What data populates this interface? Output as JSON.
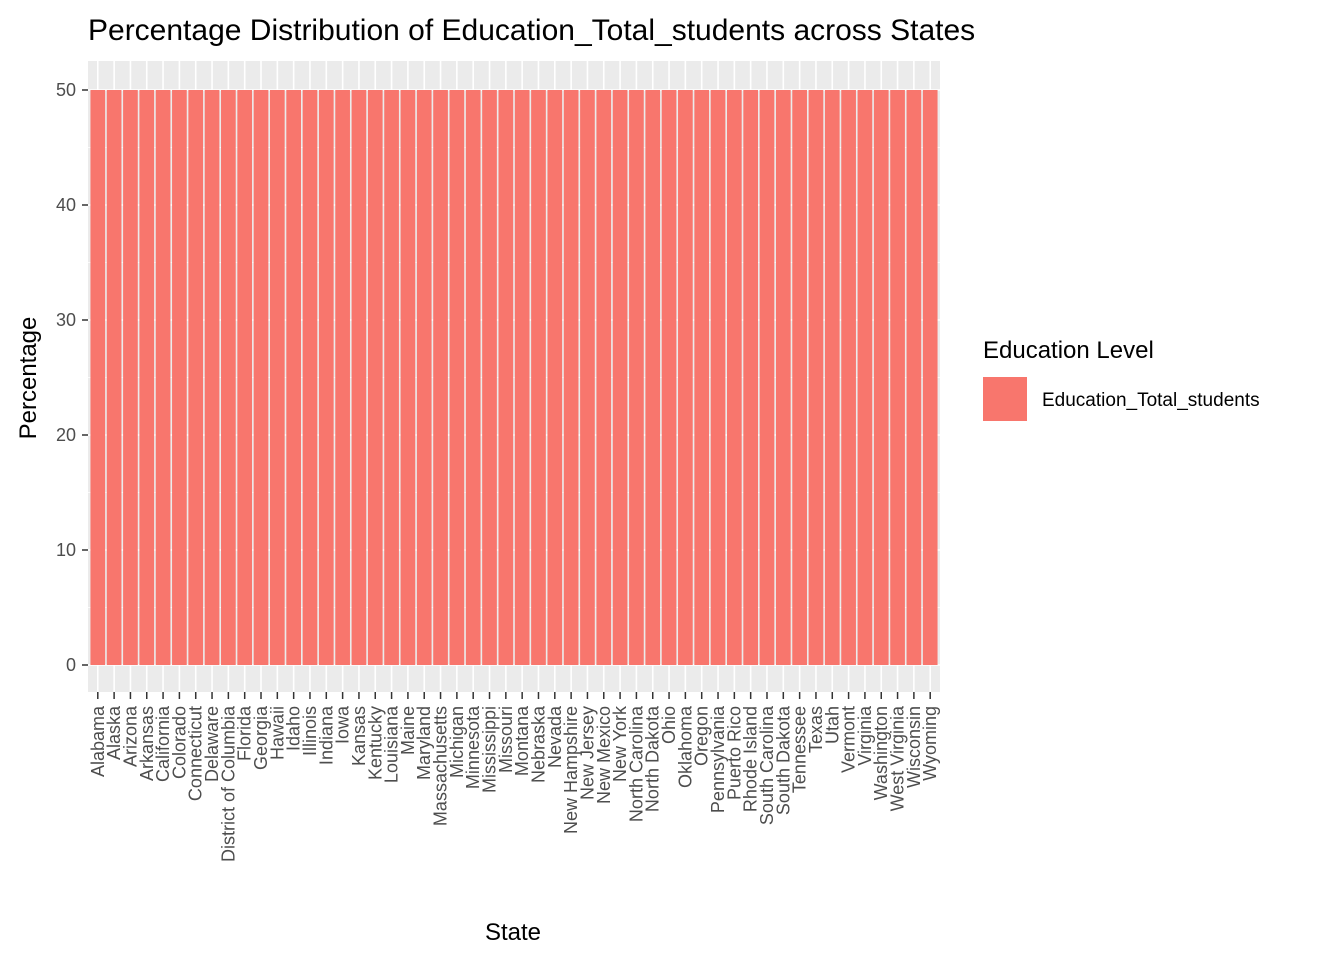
{
  "chart_data": {
    "type": "bar",
    "title": "Percentage Distribution of Education_Total_students across States",
    "xlabel": "State",
    "ylabel": "Percentage",
    "ylim": [
      0,
      50
    ],
    "yticks": [
      0,
      10,
      20,
      30,
      40,
      50
    ],
    "grid": true,
    "legend_position": "right",
    "legend": {
      "title": "Education Level",
      "entries": [
        "Education_Total_students"
      ]
    },
    "colors": {
      "bar": "#F8766D",
      "panel_background": "#EBEBEB",
      "grid": "#FFFFFF"
    },
    "categories": [
      "Alabama",
      "Alaska",
      "Arizona",
      "Arkansas",
      "California",
      "Colorado",
      "Connecticut",
      "Delaware",
      "District of Columbia",
      "Florida",
      "Georgia",
      "Hawaii",
      "Idaho",
      "Illinois",
      "Indiana",
      "Iowa",
      "Kansas",
      "Kentucky",
      "Louisiana",
      "Maine",
      "Maryland",
      "Massachusetts",
      "Michigan",
      "Minnesota",
      "Mississippi",
      "Missouri",
      "Montana",
      "Nebraska",
      "Nevada",
      "New Hampshire",
      "New Jersey",
      "New Mexico",
      "New York",
      "North Carolina",
      "North Dakota",
      "Ohio",
      "Oklahoma",
      "Oregon",
      "Pennsylvania",
      "Puerto Rico",
      "Rhode Island",
      "South Carolina",
      "South Dakota",
      "Tennessee",
      "Texas",
      "Utah",
      "Vermont",
      "Virginia",
      "Washington",
      "West Virginia",
      "Wisconsin",
      "Wyoming"
    ],
    "series": [
      {
        "name": "Education_Total_students",
        "values": [
          50,
          50,
          50,
          50,
          50,
          50,
          50,
          50,
          50,
          50,
          50,
          50,
          50,
          50,
          50,
          50,
          50,
          50,
          50,
          50,
          50,
          50,
          50,
          50,
          50,
          50,
          50,
          50,
          50,
          50,
          50,
          50,
          50,
          50,
          50,
          50,
          50,
          50,
          50,
          50,
          50,
          50,
          50,
          50,
          50,
          50,
          50,
          50,
          50,
          50,
          50,
          50
        ]
      }
    ]
  }
}
